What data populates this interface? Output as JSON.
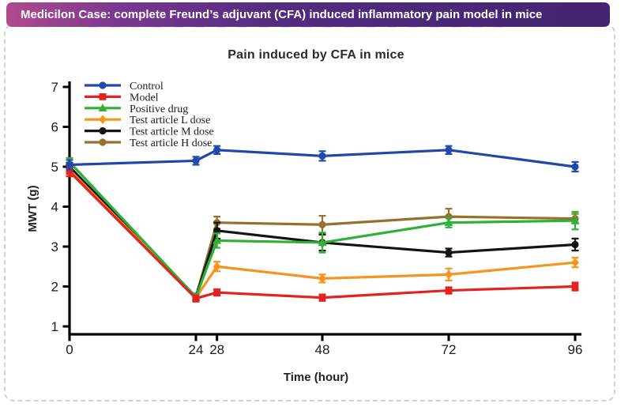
{
  "banner": {
    "text": "Medicilon Case: complete Freund’s adjuvant (CFA) induced inflammatory pain model in mice",
    "gradient_left": "#b04a8f",
    "gradient_right": "#432470",
    "text_color": "#ffffff"
  },
  "chart_data": {
    "type": "line",
    "title": "Pain induced by CFA in mice",
    "xlabel": "Time (hour)",
    "ylabel": "MWT (g)",
    "x": [
      0,
      24,
      28,
      48,
      72,
      96
    ],
    "x_tick_labels": [
      "0",
      "24",
      "28",
      "48",
      "72",
      "96"
    ],
    "y_ticks": [
      1,
      2,
      3,
      4,
      5,
      6,
      7
    ],
    "ylim": [
      1,
      7
    ],
    "xlim": [
      0,
      96
    ],
    "grid": false,
    "legend_position": "top-left",
    "error_bars": true,
    "series": [
      {
        "name": "Control",
        "color": "#2148a8",
        "marker": "circle",
        "values": [
          5.05,
          5.15,
          5.42,
          5.27,
          5.42,
          5.0
        ],
        "errors": [
          0.12,
          0.1,
          0.1,
          0.12,
          0.1,
          0.12
        ]
      },
      {
        "name": "Model",
        "color": "#e32222",
        "marker": "square",
        "values": [
          4.88,
          1.7,
          1.85,
          1.72,
          1.9,
          2.0
        ],
        "errors": [
          0.12,
          0.08,
          0.08,
          0.08,
          0.08,
          0.1
        ]
      },
      {
        "name": "Positive drug",
        "color": "#2eb135",
        "marker": "triangle",
        "values": [
          5.12,
          1.73,
          3.15,
          3.1,
          3.6,
          3.65
        ],
        "errors": [
          0.1,
          0.08,
          0.18,
          0.25,
          0.12,
          0.22
        ]
      },
      {
        "name": "Test article L dose",
        "color": "#f7941e",
        "marker": "diamond",
        "values": [
          4.92,
          1.72,
          2.5,
          2.2,
          2.3,
          2.6
        ],
        "errors": [
          0.1,
          0.08,
          0.12,
          0.1,
          0.15,
          0.12
        ]
      },
      {
        "name": "Test article M dose",
        "color": "#141414",
        "marker": "circle",
        "values": [
          5.0,
          1.74,
          3.4,
          3.1,
          2.85,
          3.05
        ],
        "errors": [
          0.1,
          0.08,
          0.2,
          0.2,
          0.1,
          0.15
        ]
      },
      {
        "name": "Test article H dose",
        "color": "#96702d",
        "marker": "circle",
        "values": [
          4.97,
          1.74,
          3.6,
          3.55,
          3.75,
          3.7
        ],
        "errors": [
          0.1,
          0.08,
          0.15,
          0.22,
          0.2,
          0.12
        ]
      }
    ]
  }
}
